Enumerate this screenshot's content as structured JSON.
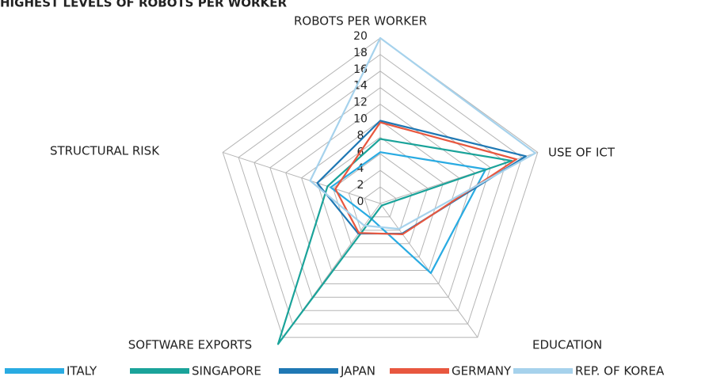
{
  "chart_data": {
    "type": "radar",
    "title": "HIGHEST LEVELS OF ROBOTS PER WORKER",
    "categories": [
      "ROBOTS PER WORKER",
      "USE OF ICT",
      "EDUCATION",
      "SOFTWARE EXPORTS",
      "STRUCTURAL RISK"
    ],
    "ylim": [
      0,
      20
    ],
    "yticks": [
      0,
      2,
      4,
      6,
      8,
      10,
      12,
      14,
      16,
      18,
      20
    ],
    "grid": true,
    "legend": "bottom",
    "series": [
      {
        "name": "ITALY",
        "color": "#29abe2",
        "values": [
          6.2,
          13.4,
          10.4,
          2.1,
          6.3
        ]
      },
      {
        "name": "SINGAPORE",
        "color": "#1aa39a",
        "values": [
          7.8,
          16.7,
          0.3,
          21,
          6.7
        ]
      },
      {
        "name": "JAPAN",
        "color": "#1f78b4",
        "values": [
          10,
          18.5,
          4.5,
          4.5,
          8
        ]
      },
      {
        "name": "GERMANY",
        "color": "#e8573f",
        "values": [
          9.8,
          17.3,
          4.6,
          4.4,
          5.7
        ]
      },
      {
        "name": "REP. OF KOREA",
        "color": "#a6d2ec",
        "values": [
          20,
          19.7,
          3.8,
          3.3,
          8.9
        ]
      }
    ]
  }
}
